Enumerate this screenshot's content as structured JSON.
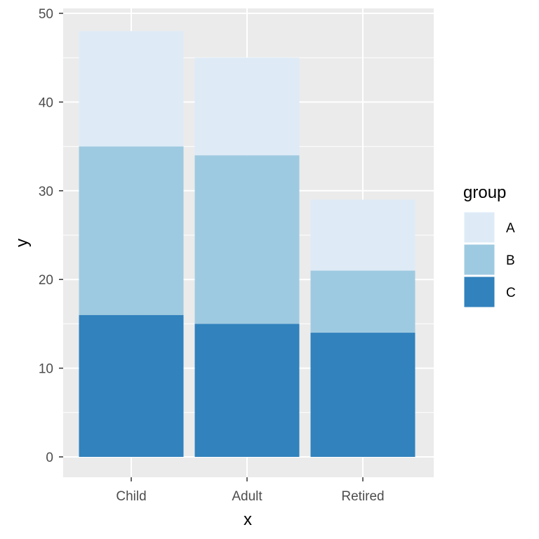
{
  "chart_data": {
    "type": "bar",
    "stacked": true,
    "categories": [
      "Child",
      "Adult",
      "Retired"
    ],
    "series": [
      {
        "name": "C",
        "values": [
          16,
          15,
          14
        ],
        "color": "#3182BD"
      },
      {
        "name": "B",
        "values": [
          19,
          19,
          7
        ],
        "color": "#9ECAE1"
      },
      {
        "name": "A",
        "values": [
          13,
          11,
          8
        ],
        "color": "#DEEBF7"
      }
    ],
    "legend_title": "group",
    "legend_order": [
      "A",
      "B",
      "C"
    ],
    "xlabel": "x",
    "ylabel": "y",
    "ylim": [
      0,
      50
    ],
    "yticks": [
      0,
      10,
      20,
      30,
      40,
      50
    ],
    "grid": true,
    "legend_position": "right",
    "panel_background": "#EBEBEB",
    "grid_color": "#FFFFFF"
  }
}
